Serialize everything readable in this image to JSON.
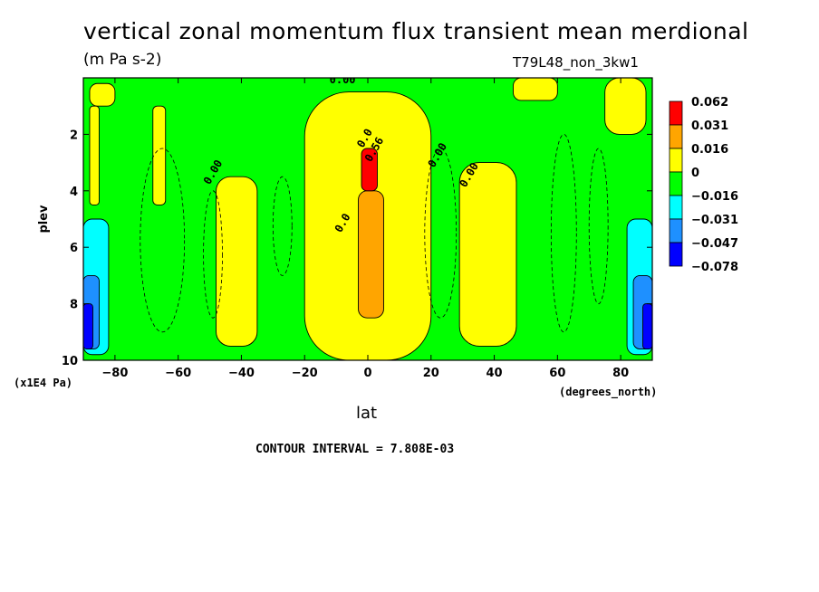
{
  "title": "vertical zonal momentum flux transient mean merdional",
  "units": "(m Pa s-2)",
  "run_label": "T79L48_non_3kw1",
  "x_unit_left": "(x1E4 Pa)",
  "x_unit_right": "(degrees_north)",
  "contour_interval": "CONTOUR INTERVAL = 7.808E-03",
  "chart_data": {
    "type": "heatmap",
    "xlabel": "lat",
    "ylabel": "plev",
    "xlim": [
      -90,
      90
    ],
    "ylim": [
      10,
      0
    ],
    "x_ticks": [
      -80,
      -60,
      -40,
      -20,
      0,
      20,
      40,
      60,
      80
    ],
    "y_ticks": [
      2,
      4,
      6,
      8,
      10
    ],
    "colorbar": {
      "levels": [
        "0.062",
        "0.031",
        "0.016",
        "0",
        "-0.016",
        "-0.031",
        "-0.047",
        "-0.078"
      ],
      "colors": [
        "#ff0000",
        "#ffa500",
        "#ffff00",
        "#00ff00",
        "#00ffff",
        "#1e90ff",
        "#0000ff"
      ]
    },
    "contour_labels": [
      {
        "text": "0.00",
        "lat": -8,
        "plev": 0.2
      },
      {
        "text": "0.00",
        "lat": -48,
        "plev": 3.4
      },
      {
        "text": "0.0",
        "lat": -7,
        "plev": 5.2
      },
      {
        "text": "0.00",
        "lat": 23,
        "plev": 2.8
      },
      {
        "text": "0.00",
        "lat": 33,
        "plev": 3.5
      },
      {
        "text": "0.0",
        "lat": 0,
        "plev": 2.2
      },
      {
        "text": "0.56",
        "lat": 3,
        "plev": 2.6
      }
    ],
    "regions": [
      {
        "level": "0 to 0.016",
        "lat": [
          -88,
          -80
        ],
        "plev": [
          0.2,
          1.0
        ]
      },
      {
        "level": "0 to 0.016",
        "lat": [
          -88,
          -85
        ],
        "plev": [
          1.0,
          4.5
        ]
      },
      {
        "level": "0 to 0.016",
        "lat": [
          -68,
          -64
        ],
        "plev": [
          1.0,
          4.5
        ]
      },
      {
        "level": "0 to 0.016",
        "lat": [
          -48,
          -35
        ],
        "plev": [
          3.5,
          9.5
        ]
      },
      {
        "level": "0 to 0.016",
        "lat": [
          -20,
          20
        ],
        "plev": [
          0.5,
          10.0
        ]
      },
      {
        "level": "0.016 to 0.031",
        "lat": [
          -3,
          5
        ],
        "plev": [
          4.0,
          8.5
        ]
      },
      {
        "level": "0.031 to 0.062",
        "lat": [
          -2,
          3
        ],
        "plev": [
          2.5,
          4.0
        ]
      },
      {
        "level": "0 to 0.016",
        "lat": [
          29,
          47
        ],
        "plev": [
          3.0,
          9.5
        ]
      },
      {
        "level": "0 to 0.016",
        "lat": [
          46,
          60
        ],
        "plev": [
          0.0,
          0.8
        ]
      },
      {
        "level": "0 to 0.016",
        "lat": [
          75,
          88
        ],
        "plev": [
          0.0,
          2.0
        ]
      },
      {
        "level": "-0.016 to -0.031",
        "lat": [
          -90,
          -82
        ],
        "plev": [
          5.0,
          9.8
        ]
      },
      {
        "level": "-0.031 to -0.047",
        "lat": [
          -90,
          -85
        ],
        "plev": [
          7.0,
          9.6
        ]
      },
      {
        "level": "-0.047 to -0.078",
        "lat": [
          -90,
          -87
        ],
        "plev": [
          8.0,
          9.6
        ]
      },
      {
        "level": "-0.016 to -0.031",
        "lat": [
          82,
          90
        ],
        "plev": [
          5.0,
          9.8
        ]
      },
      {
        "level": "-0.031 to -0.047",
        "lat": [
          84,
          90
        ],
        "plev": [
          7.0,
          9.6
        ]
      },
      {
        "level": "-0.047 to -0.078",
        "lat": [
          87,
          90
        ],
        "plev": [
          8.0,
          9.6
        ]
      }
    ]
  }
}
